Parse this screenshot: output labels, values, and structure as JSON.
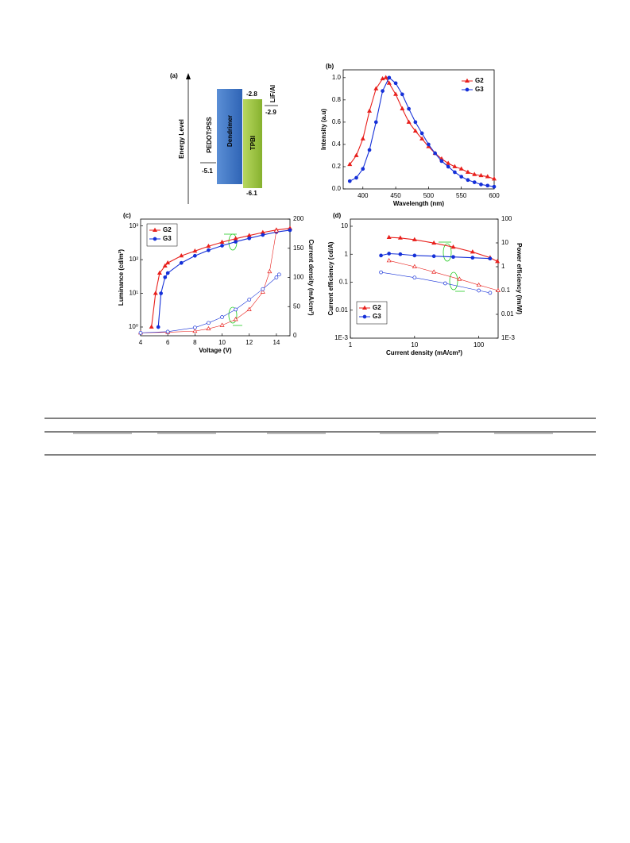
{
  "diagram": {
    "label": "(a)",
    "axis_label": "Energy Level",
    "layers": [
      {
        "name": "PEDOT:PSS",
        "level": "-5.1"
      },
      {
        "name": "Dendrimer"
      },
      {
        "name": "TPBI",
        "top": "-2.8",
        "bottom": "-6.1"
      },
      {
        "name": "LiF/Al",
        "level": "-2.9"
      }
    ]
  },
  "chart_data": [
    {
      "type": "line",
      "label": "(b)",
      "x_label": "Wavelength (nm)",
      "y_label": "Intensity (a.u)",
      "xlim": [
        370,
        600
      ],
      "xticks": [
        400,
        450,
        500,
        550,
        600
      ],
      "ylim": [
        0,
        1.07
      ],
      "yticks": [
        {
          "value": 0,
          "label": "0.0"
        },
        0.2,
        0.4,
        0.6,
        0.8,
        {
          "value": 1,
          "label": "1.0"
        }
      ],
      "legend": "upper right",
      "series": [
        {
          "name": "G2",
          "color": "#e8201c",
          "marker": "triangle",
          "filled": true,
          "x": [
            380,
            390,
            400,
            410,
            420,
            430,
            435,
            440,
            450,
            460,
            470,
            480,
            490,
            500,
            510,
            520,
            530,
            540,
            550,
            560,
            570,
            580,
            590,
            600
          ],
          "values": [
            0.22,
            0.3,
            0.45,
            0.7,
            0.9,
            0.99,
            1.0,
            0.95,
            0.85,
            0.72,
            0.6,
            0.52,
            0.45,
            0.38,
            0.32,
            0.27,
            0.23,
            0.2,
            0.18,
            0.15,
            0.13,
            0.12,
            0.11,
            0.09
          ]
        },
        {
          "name": "G3",
          "color": "#1530d8",
          "marker": "circle",
          "filled": true,
          "x": [
            380,
            390,
            400,
            410,
            420,
            430,
            440,
            450,
            460,
            470,
            480,
            490,
            500,
            510,
            520,
            530,
            540,
            550,
            560,
            570,
            580,
            590,
            600
          ],
          "values": [
            0.07,
            0.1,
            0.18,
            0.35,
            0.6,
            0.88,
            1.0,
            0.95,
            0.85,
            0.72,
            0.6,
            0.5,
            0.4,
            0.32,
            0.25,
            0.2,
            0.15,
            0.11,
            0.08,
            0.06,
            0.04,
            0.03,
            0.02
          ]
        }
      ]
    },
    {
      "type": "line",
      "label": "(c)",
      "x_label": "Voltage (V)",
      "y_label": "Luminance (cd/m²)",
      "y2_label": "Current density (mA/cm²)",
      "xlim": [
        4,
        15
      ],
      "xticks": [
        4,
        6,
        8,
        10,
        12,
        14
      ],
      "ylog": true,
      "ylim": [
        0.55,
        1600
      ],
      "yticks": [
        {
          "value": 1,
          "label": "10⁰"
        },
        {
          "value": 10,
          "label": "10¹"
        },
        {
          "value": 100,
          "label": "10²"
        },
        {
          "value": 1000,
          "label": "10³"
        }
      ],
      "y2lim": [
        0,
        200
      ],
      "y2ticks": [
        0,
        50,
        100,
        150,
        200
      ],
      "legend": "upper left",
      "series": [
        {
          "name": "G2",
          "color": "#e8201c",
          "marker": "triangle",
          "filled": true,
          "x": [
            4.8,
            5.1,
            5.4,
            5.8,
            6,
            7,
            8,
            9,
            10,
            11,
            12,
            13,
            14,
            15
          ],
          "values": [
            1,
            10,
            40,
            65,
            80,
            130,
            180,
            250,
            330,
            420,
            520,
            640,
            760,
            850
          ]
        },
        {
          "name": "G3",
          "color": "#1530d8",
          "marker": "circle",
          "filled": true,
          "x": [
            5.3,
            5.5,
            5.8,
            6,
            7,
            8,
            9,
            10,
            11,
            12,
            13,
            14,
            15
          ],
          "values": [
            1,
            10,
            30,
            40,
            80,
            130,
            190,
            260,
            340,
            430,
            540,
            660,
            750
          ]
        },
        {
          "color": "#e8201c",
          "marker": "triangle",
          "filled": false,
          "axis": "y2",
          "x": [
            4,
            6,
            8,
            9,
            10,
            11,
            12,
            13,
            13.5,
            14
          ],
          "values": [
            5,
            6,
            8,
            12,
            18,
            28,
            45,
            75,
            110,
            180
          ]
        },
        {
          "color": "#1530d8",
          "marker": "circle",
          "filled": false,
          "axis": "y2",
          "x": [
            4,
            6,
            8,
            9,
            10,
            11,
            12,
            13,
            14,
            14.2
          ],
          "values": [
            5,
            7,
            14,
            22,
            32,
            45,
            62,
            80,
            100,
            105
          ]
        }
      ]
    },
    {
      "type": "line",
      "label": "(d)",
      "x_label": "Current density (mA/cm²)",
      "y_label": "Current efficiency (cd/A)",
      "y2_label": "Power efficiency (lm/W)",
      "xlog": true,
      "xlim": [
        1,
        200
      ],
      "xticks": [
        1,
        10,
        100
      ],
      "ylog": true,
      "ylim": [
        0.001,
        18
      ],
      "yticks": [
        {
          "value": 0.001,
          "label": "1E-3"
        },
        0.01,
        0.1,
        1,
        10
      ],
      "y2log": true,
      "y2lim": [
        0.001,
        100
      ],
      "y2ticks": [
        {
          "value": 0.001,
          "label": "1E-3"
        },
        0.01,
        0.1,
        1,
        10,
        100
      ],
      "legend": "lower left",
      "series": [
        {
          "name": "G2",
          "color": "#e8201c",
          "marker": "triangle",
          "filled": true,
          "x": [
            4,
            6,
            10,
            20,
            40,
            80,
            150,
            195
          ],
          "values": [
            4,
            3.8,
            3.3,
            2.5,
            1.8,
            1.2,
            0.75,
            0.55
          ]
        },
        {
          "name": "G3",
          "color": "#1530d8",
          "marker": "circle",
          "filled": true,
          "x": [
            3,
            4,
            6,
            10,
            20,
            40,
            80,
            150
          ],
          "values": [
            0.9,
            1.05,
            1.0,
            0.9,
            0.85,
            0.8,
            0.75,
            0.7
          ]
        },
        {
          "color": "#e8201c",
          "marker": "triangle",
          "filled": false,
          "axis": "y2",
          "x": [
            4,
            10,
            20,
            50,
            100,
            200
          ],
          "values": [
            1.8,
            1.0,
            0.6,
            0.3,
            0.17,
            0.1
          ]
        },
        {
          "color": "#1530d8",
          "marker": "circle",
          "filled": false,
          "axis": "y2",
          "x": [
            3,
            10,
            30,
            100,
            150
          ],
          "values": [
            0.58,
            0.35,
            0.2,
            0.1,
            0.08
          ]
        }
      ]
    }
  ]
}
